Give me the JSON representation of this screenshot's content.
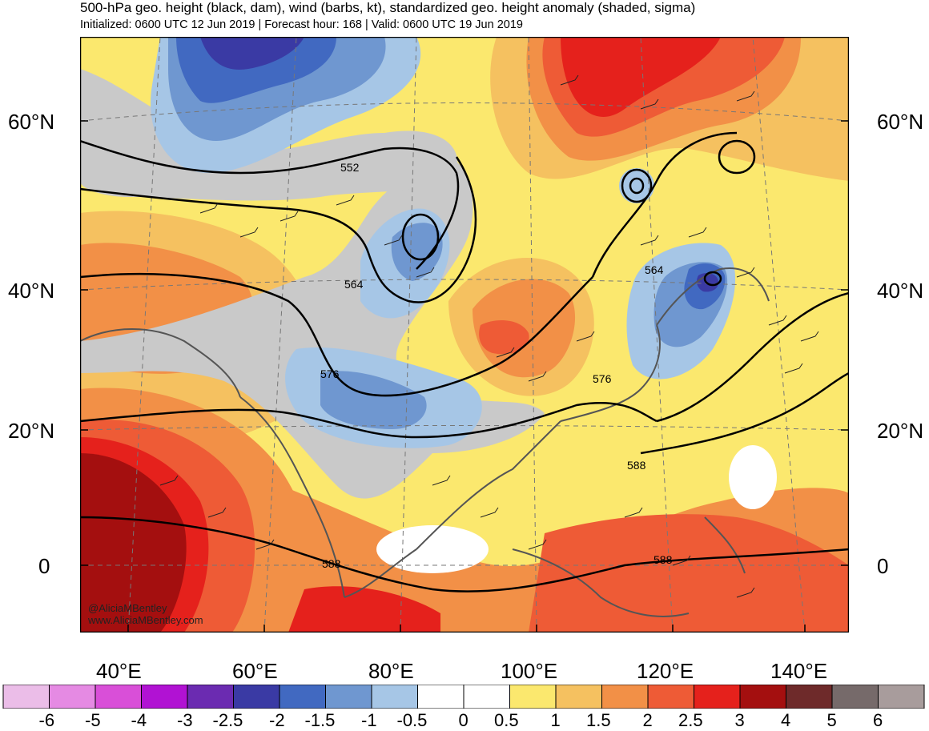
{
  "header": {
    "title": "500-hPa geo. height (black, dam), wind (barbs, kt), standardized geo. height anomaly (shaded, sigma)",
    "subtitle": "Initialized: 0600 UTC 12 Jun 2019 | Forecast hour: 168 | Valid: 0600 UTC 19 Jun 2019"
  },
  "latitude_labels": [
    "60°N",
    "40°N",
    "20°N",
    "0"
  ],
  "longitude_labels": [
    "40°E",
    "60°E",
    "80°E",
    "100°E",
    "120°E",
    "140°E"
  ],
  "contour_labels": [
    "552",
    "564",
    "576",
    "588",
    "564",
    "576",
    "588",
    "588"
  ],
  "credit": {
    "twitter": "@AliciaMBentley",
    "website": "www.AliciaMBentley.com"
  },
  "colorbar": {
    "labels": [
      "-6",
      "-5",
      "-4",
      "-3",
      "-2.5",
      "-2",
      "-1.5",
      "-1",
      "-0.5",
      "0",
      "0.5",
      "1",
      "1.5",
      "2",
      "2.5",
      "3",
      "4",
      "5",
      "6"
    ],
    "colors": [
      "#ebbde8",
      "#e58ae3",
      "#d94fd8",
      "#b112d3",
      "#6b2bb1",
      "#3a3aa4",
      "#4169c1",
      "#6f97d0",
      "#a6c6e6",
      "#ffffff",
      "#ffffff",
      "#fbe86e",
      "#f5c160",
      "#f29047",
      "#ee5b36",
      "#e5211c",
      "#a40f0f",
      "#6e2a2a",
      "#766a6a",
      "#a89c9c"
    ]
  },
  "colors": {
    "neutral_gray": "#c9c9c9",
    "map_background": "#ffffff",
    "contour": "#000000"
  }
}
